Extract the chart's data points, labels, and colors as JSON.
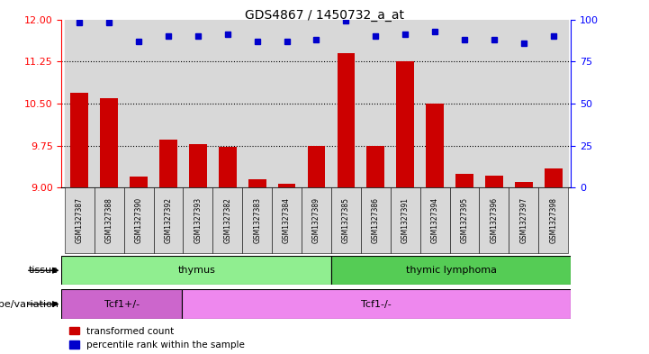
{
  "title": "GDS4867 / 1450732_a_at",
  "samples": [
    "GSM1327387",
    "GSM1327388",
    "GSM1327390",
    "GSM1327392",
    "GSM1327393",
    "GSM1327382",
    "GSM1327383",
    "GSM1327384",
    "GSM1327389",
    "GSM1327385",
    "GSM1327386",
    "GSM1327391",
    "GSM1327394",
    "GSM1327395",
    "GSM1327396",
    "GSM1327397",
    "GSM1327398"
  ],
  "transformed_count": [
    10.7,
    10.6,
    9.2,
    9.85,
    9.78,
    9.72,
    9.15,
    9.07,
    9.75,
    11.4,
    9.75,
    11.25,
    10.5,
    9.25,
    9.22,
    9.1,
    9.35
  ],
  "percentile_rank": [
    98,
    98,
    87,
    90,
    90,
    91,
    87,
    87,
    88,
    99,
    90,
    91,
    93,
    88,
    88,
    86,
    90
  ],
  "ylim_left": [
    9,
    12
  ],
  "ylim_right": [
    0,
    100
  ],
  "yticks_left": [
    9,
    9.75,
    10.5,
    11.25,
    12
  ],
  "yticks_right": [
    0,
    25,
    50,
    75,
    100
  ],
  "tissue_groups": [
    {
      "label": "thymus",
      "start": 0,
      "end": 9,
      "color": "#90EE90"
    },
    {
      "label": "thymic lymphoma",
      "start": 9,
      "end": 17,
      "color": "#55CC55"
    }
  ],
  "genotype_groups": [
    {
      "label": "Tcf1+/-",
      "start": 0,
      "end": 4,
      "color": "#CC66CC"
    },
    {
      "label": "Tcf1-/-",
      "start": 4,
      "end": 17,
      "color": "#EE88EE"
    }
  ],
  "bar_color": "#CC0000",
  "dot_color": "#0000CC",
  "bar_width": 0.6,
  "tissue_label": "tissue",
  "genotype_label": "genotype/variation",
  "legend_items": [
    "transformed count",
    "percentile rank within the sample"
  ],
  "legend_colors": [
    "#CC0000",
    "#0000CC"
  ]
}
